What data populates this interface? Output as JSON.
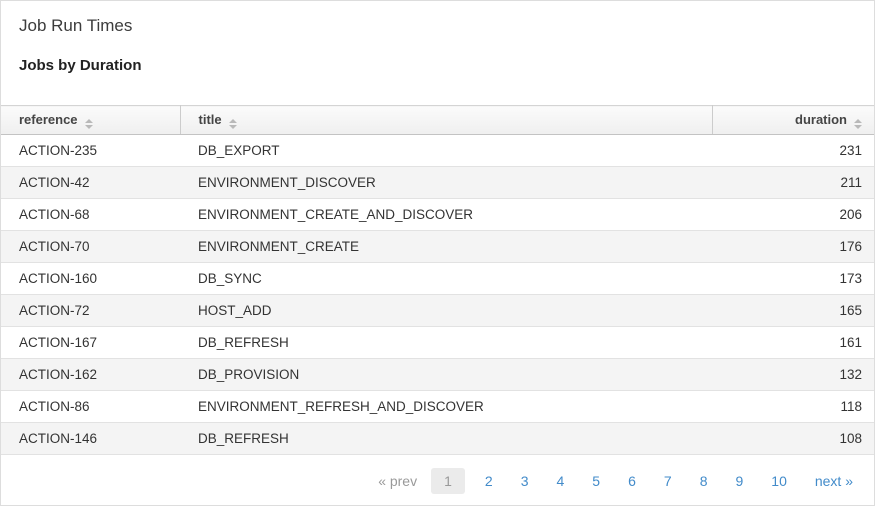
{
  "page": {
    "title": "Job Run Times",
    "subtitle": "Jobs by Duration"
  },
  "table": {
    "columns": [
      {
        "key": "reference",
        "label": "reference",
        "sortable": true
      },
      {
        "key": "title",
        "label": "title",
        "sortable": true
      },
      {
        "key": "duration",
        "label": "duration",
        "sortable": true
      }
    ],
    "rows": [
      {
        "reference": "ACTION-235",
        "title": "DB_EXPORT",
        "duration": "231"
      },
      {
        "reference": "ACTION-42",
        "title": "ENVIRONMENT_DISCOVER",
        "duration": "211"
      },
      {
        "reference": "ACTION-68",
        "title": "ENVIRONMENT_CREATE_AND_DISCOVER",
        "duration": "206"
      },
      {
        "reference": "ACTION-70",
        "title": "ENVIRONMENT_CREATE",
        "duration": "176"
      },
      {
        "reference": "ACTION-160",
        "title": "DB_SYNC",
        "duration": "173"
      },
      {
        "reference": "ACTION-72",
        "title": "HOST_ADD",
        "duration": "165"
      },
      {
        "reference": "ACTION-167",
        "title": "DB_REFRESH",
        "duration": "161"
      },
      {
        "reference": "ACTION-162",
        "title": "DB_PROVISION",
        "duration": "132"
      },
      {
        "reference": "ACTION-86",
        "title": "ENVIRONMENT_REFRESH_AND_DISCOVER",
        "duration": "118"
      },
      {
        "reference": "ACTION-146",
        "title": "DB_REFRESH",
        "duration": "108"
      }
    ]
  },
  "pagination": {
    "prev_label": "« prev",
    "next_label": "next »",
    "active_page": "1",
    "pages": [
      "1",
      "2",
      "3",
      "4",
      "5",
      "6",
      "7",
      "8",
      "9",
      "10"
    ]
  },
  "colors": {
    "link_blue": "#428bca",
    "header_bg": "#f3f3f3",
    "zebra_row_bg": "#f4f4f4",
    "muted_gray": "#9a9a9a"
  }
}
